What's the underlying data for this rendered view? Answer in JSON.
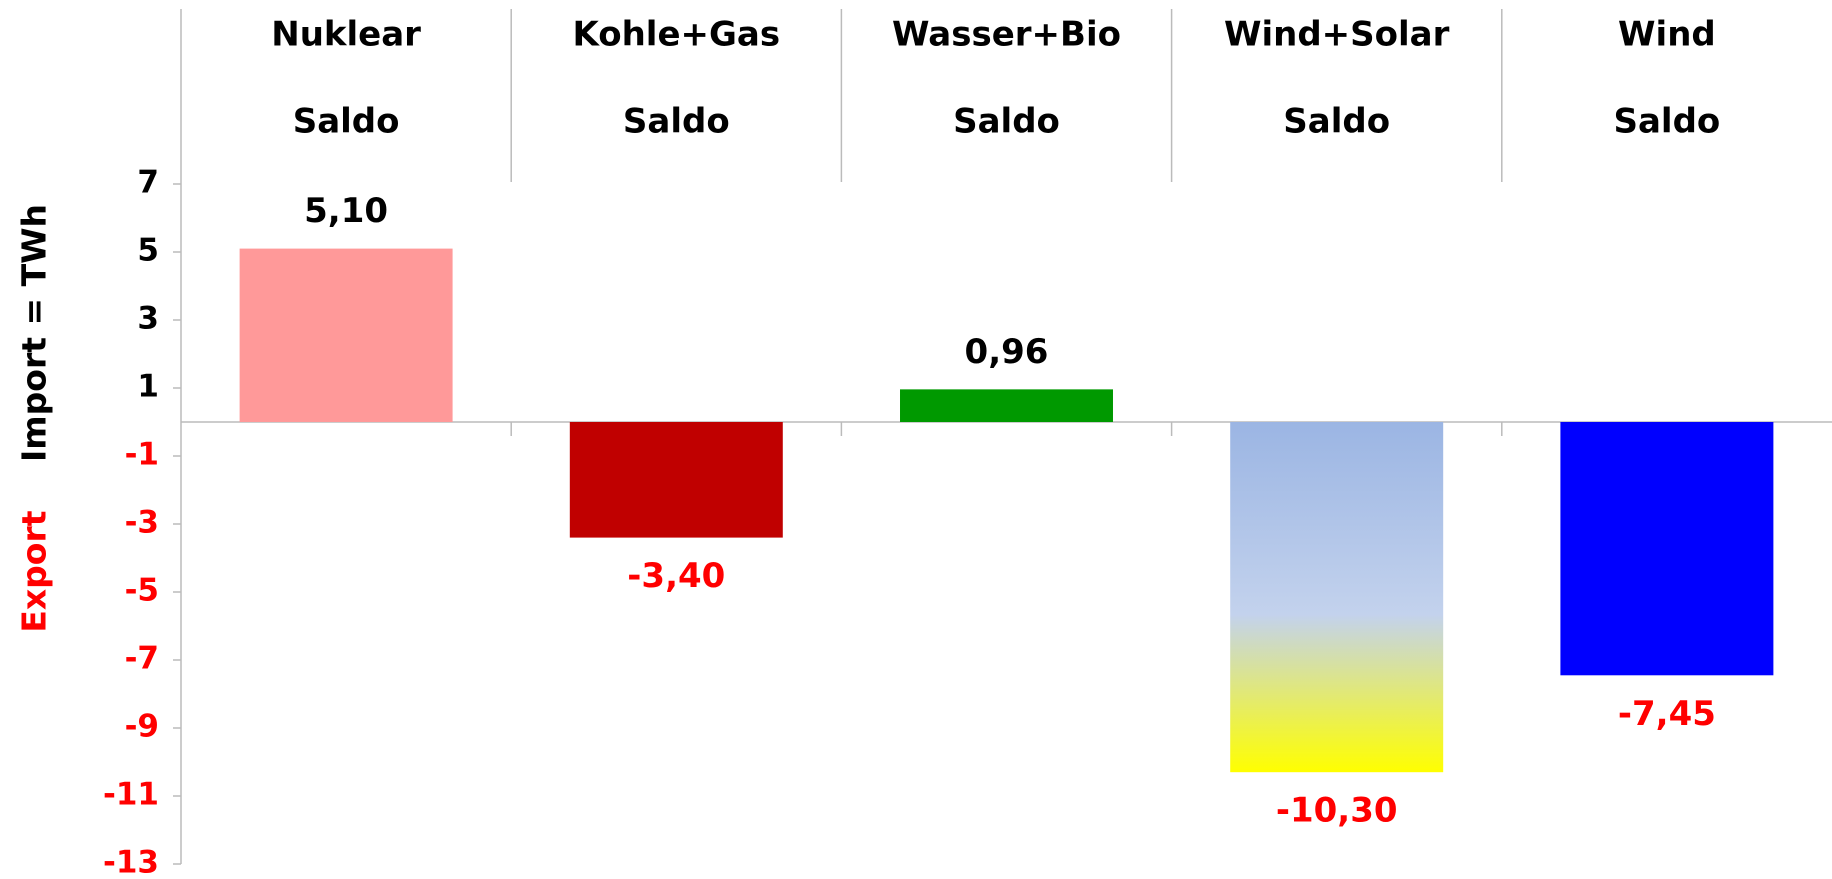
{
  "chart_data": {
    "type": "bar",
    "categories": [
      [
        "Nuklear",
        "Saldo"
      ],
      [
        "Kohle+Gas",
        "Saldo"
      ],
      [
        "Wasser+Bio",
        "Saldo"
      ],
      [
        "Wind+Solar",
        "Saldo"
      ],
      [
        "Wind",
        "Saldo"
      ]
    ],
    "values": [
      5.1,
      -3.4,
      0.96,
      -10.3,
      -7.45
    ],
    "value_labels": [
      "5,10",
      "-3,40",
      "0,96",
      "-10,30",
      "-7,45"
    ],
    "colors": [
      "#ff9999",
      "#c00000",
      "#009900",
      [
        "#9bb5e3",
        "#c3d2ed",
        "#ffff00"
      ],
      "#0000ff"
    ],
    "ylabel_positive": "Import =  TWh",
    "ylabel_negative": "Export",
    "positive_color": "#000000",
    "negative_color": "#ff0000",
    "ylim": [
      -13,
      7
    ],
    "yticks": [
      -13,
      -11,
      -9,
      -7,
      -5,
      -3,
      -1,
      1,
      3,
      5,
      7
    ],
    "grid": false
  }
}
